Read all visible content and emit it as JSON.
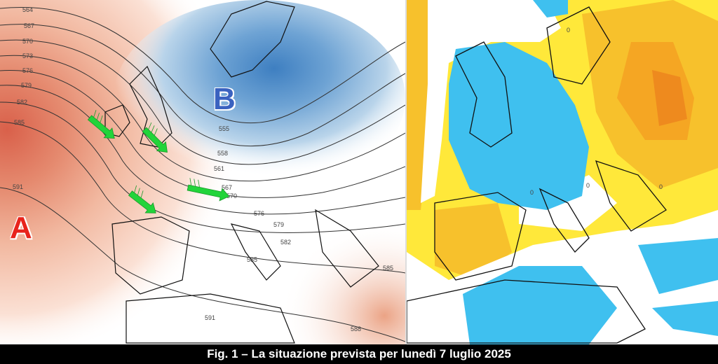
{
  "caption": "Fig. 1 – La situazione prevista per lunedì 7 luglio 2025",
  "left_map": {
    "high_label": "A",
    "low_label": "B",
    "contour_labels": [
      "564",
      "567",
      "570",
      "573",
      "576",
      "579",
      "582",
      "585",
      "591",
      "555",
      "558",
      "561",
      "567",
      "570",
      "576",
      "579",
      "582",
      "585",
      "585",
      "588",
      "591"
    ],
    "colors": {
      "high": "#e07a5f",
      "low": "#3e7fc1",
      "arrow": "#22d43a",
      "high_marker": "#e8231c",
      "low_marker": "#3a62c0"
    }
  },
  "right_map": {
    "colors": {
      "warm": "#f5a623",
      "warm_light": "#ffe83a",
      "cold": "#3fc0ef",
      "neutral": "#ffffff"
    },
    "contour_labels": [
      "0",
      "0",
      "0",
      "0"
    ]
  }
}
